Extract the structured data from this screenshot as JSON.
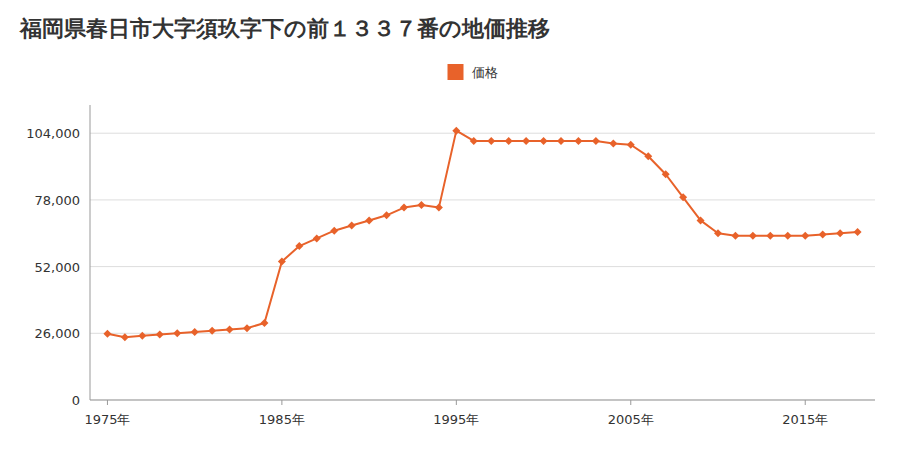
{
  "chart_data": {
    "type": "line",
    "title": "福岡県春日市大字須玖字下の前１３３７番の地価推移",
    "x": [
      1975,
      1976,
      1977,
      1978,
      1979,
      1980,
      1981,
      1982,
      1983,
      1984,
      1985,
      1986,
      1987,
      1988,
      1989,
      1990,
      1991,
      1992,
      1993,
      1994,
      1995,
      1996,
      1997,
      1998,
      1999,
      2000,
      2001,
      2002,
      2003,
      2004,
      2005,
      2006,
      2007,
      2008,
      2009,
      2010,
      2011,
      2012,
      2013,
      2014,
      2015,
      2016,
      2017,
      2018
    ],
    "series": [
      {
        "name": "価格",
        "color": "#E8622A",
        "marker": "diamond",
        "values": [
          25800,
          24500,
          25000,
          25500,
          26000,
          26500,
          27000,
          27500,
          28000,
          30000,
          54000,
          60000,
          63000,
          66000,
          68000,
          70000,
          72000,
          75000,
          76000,
          75000,
          105000,
          101000,
          101000,
          101000,
          101000,
          101000,
          101000,
          101000,
          101000,
          100000,
          99500,
          95000,
          88000,
          79000,
          70000,
          65000,
          64000,
          64000,
          64000,
          64000,
          64000,
          64500,
          65000,
          65500
        ]
      }
    ],
    "xlim": [
      1974,
      2019
    ],
    "xticks": [
      {
        "value": 1975,
        "label": "1975年"
      },
      {
        "value": 1985,
        "label": "1985年"
      },
      {
        "value": 1995,
        "label": "1995年"
      },
      {
        "value": 2005,
        "label": "2005年"
      },
      {
        "value": 2015,
        "label": "2015年"
      }
    ],
    "ylim": [
      0,
      115000
    ],
    "yticks": [
      0,
      {
        "value": 26000,
        "label": "26,000"
      },
      {
        "value": 52000,
        "label": "52,000"
      },
      {
        "value": 78000,
        "label": "78,000"
      },
      {
        "value": 104000,
        "label": "104,000"
      }
    ],
    "grid": true,
    "legend": "top"
  }
}
